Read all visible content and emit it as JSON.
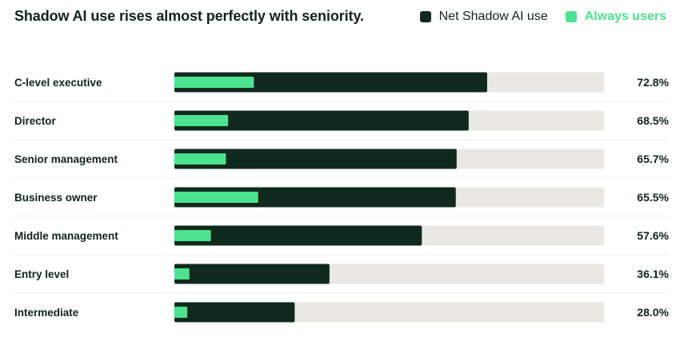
{
  "chart_data": {
    "type": "bar",
    "orientation": "horizontal",
    "stacked": "overlay",
    "title": "Shadow AI use rises almost perfectly with seniority.",
    "categories": [
      "C-level executive",
      "Director",
      "Senior management",
      "Business owner",
      "Middle management",
      "Entry level",
      "Intermediate"
    ],
    "series": [
      {
        "name": "Net Shadow AI use",
        "values": [
          72.8,
          68.5,
          65.7,
          65.5,
          57.6,
          36.1,
          28.0
        ],
        "color": "#0f2a1d"
      },
      {
        "name": "Always users",
        "values": [
          18.5,
          12.5,
          12.0,
          19.5,
          8.5,
          3.5,
          3.0
        ],
        "color": "#4ce28f"
      }
    ],
    "value_labels": [
      "72.8%",
      "68.5%",
      "65.7%",
      "65.5%",
      "57.6%",
      "36.1%",
      "28.0%"
    ],
    "xlim": [
      0,
      100
    ],
    "track_color": "#e9e8e2",
    "grid": false,
    "legend_position": "top-right"
  }
}
